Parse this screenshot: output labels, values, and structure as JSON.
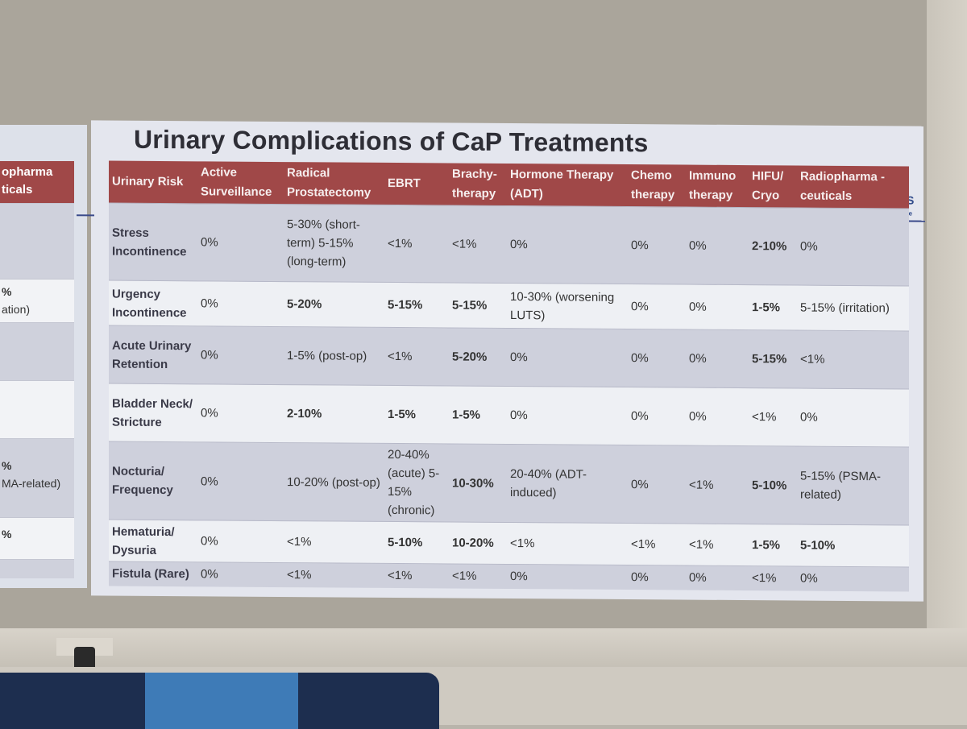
{
  "slide": {
    "title": "Urinary Complications of CaP Treatments",
    "columns": [
      "Urinary Risk",
      "Active Surveillance",
      "Radical Prostatectomy",
      "EBRT",
      "Brachy-therapy",
      "Hormone Therapy (ADT)",
      "Chemo therapy",
      "Immuno therapy",
      "HIFU/ Cryo",
      "Radiopharma -ceuticals"
    ],
    "rows": [
      {
        "risk": "Stress Incontinence",
        "cells": [
          "0%",
          "5-30% (short-term) 5-15% (long-term)",
          "<1%",
          "<1%",
          "0%",
          "0%",
          "0%",
          "2-10%",
          "0%"
        ]
      },
      {
        "risk": "Urgency Incontinence",
        "cells": [
          "0%",
          "5-20%",
          "5-15%",
          "5-15%",
          "10-30% (worsening LUTS)",
          "0%",
          "0%",
          "1-5%",
          "5-15% (irritation)"
        ]
      },
      {
        "risk": "Acute Urinary Retention",
        "cells": [
          "0%",
          "1-5% (post-op)",
          "<1%",
          "5-20%",
          "0%",
          "0%",
          "0%",
          "5-15%",
          "<1%"
        ]
      },
      {
        "risk": "Bladder Neck/ Stricture",
        "cells": [
          "0%",
          "2-10%",
          "1-5%",
          "1-5%",
          "0%",
          "0%",
          "0%",
          "<1%",
          "0%"
        ]
      },
      {
        "risk": "Nocturia/ Frequency",
        "cells": [
          "0%",
          "10-20% (post-op)",
          "20-40% (acute) 5-15% (chronic)",
          "10-30%",
          "20-40% (ADT-induced)",
          "0%",
          "<1%",
          "5-10%",
          "5-15% (PSMA-related)"
        ]
      },
      {
        "risk": "Hematuria/ Dysuria",
        "cells": [
          "0%",
          "<1%",
          "5-10%",
          "10-20%",
          "<1%",
          "<1%",
          "<1%",
          "1-5%",
          "5-10%"
        ]
      },
      {
        "risk": "Fistula (Rare)",
        "cells": [
          "0%",
          "<1%",
          "<1%",
          "<1%",
          "0%",
          "0%",
          "0%",
          "<1%",
          "0%"
        ]
      }
    ]
  },
  "left_slide": {
    "header_lines": [
      "opharma",
      "ticals"
    ],
    "fragments": [
      "%",
      "ation)",
      "%",
      "MA-related)",
      "%"
    ]
  },
  "colors": {
    "header_red": "#a04848",
    "row_shade": "#ced0dc",
    "row_light": "#eef0f4"
  }
}
